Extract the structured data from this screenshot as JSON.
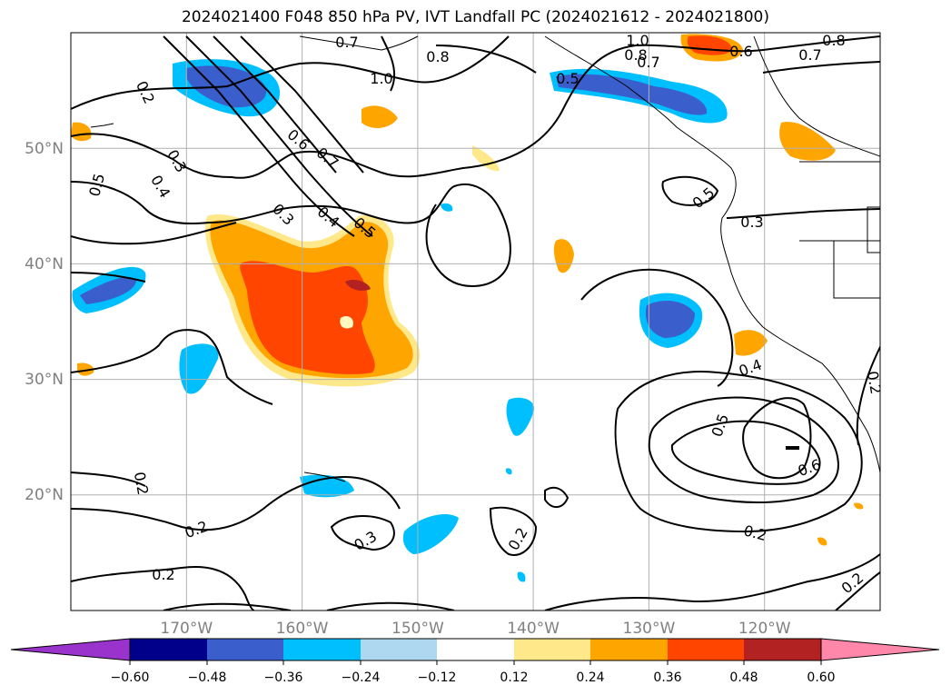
{
  "title": "2024021400 F048 850 hPa PV, IVT Landfall PC (2024021612 - 2024021800)",
  "map": {
    "lon_range": [
      -180,
      -110
    ],
    "lat_range": [
      10,
      60
    ],
    "lon_ticks": [
      "170°W",
      "160°W",
      "150°W",
      "140°W",
      "130°W",
      "120°W"
    ],
    "lat_ticks": [
      "50°N",
      "40°N",
      "30°N",
      "20°N"
    ],
    "grid": true
  },
  "contours": {
    "variable": "850 hPa PV",
    "labels": [
      "0.7",
      "1.0",
      "0.8",
      "1.0",
      "0.8",
      "0.7",
      "0.5",
      "0.6",
      "0.8",
      "0.7",
      "0.2",
      "0.3",
      "0.4",
      "0.5",
      "0.6",
      "0.7",
      "0.3",
      "0.4",
      "0.5",
      "0.5",
      "0.3",
      "0.4",
      "0.2",
      "0.5",
      "0.6",
      "0.2",
      "0.2",
      "0.3",
      "0.2",
      "0.2",
      "0.2",
      "0.2"
    ]
  },
  "colorbar": {
    "ticks": [
      "−0.60",
      "−0.48",
      "−0.36",
      "−0.24",
      "−0.12",
      "0.12",
      "0.24",
      "0.36",
      "0.48",
      "0.60"
    ],
    "colors": [
      "#9933cc",
      "#00008b",
      "#3a5fcd",
      "#00bfff",
      "#add8f0",
      "#ffffff",
      "#ffe88a",
      "#ffa500",
      "#ff4500",
      "#b22222",
      "#ff88aa"
    ]
  }
}
